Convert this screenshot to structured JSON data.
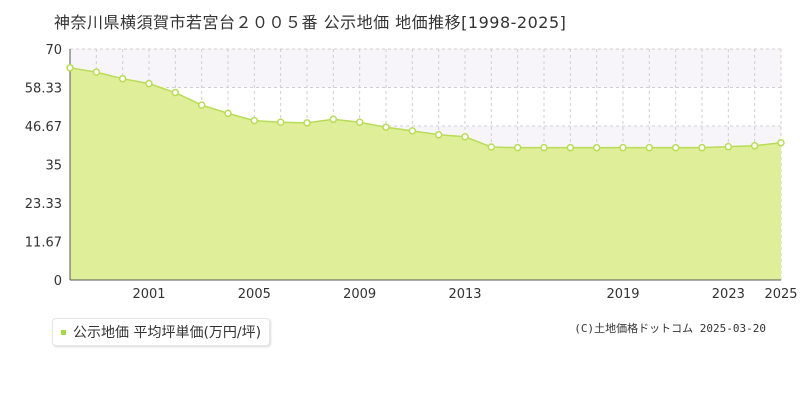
{
  "title": "神奈川県横須賀市若宮台２００５番 公示地価 地価推移[1998-2025]",
  "legend": {
    "label": "公示地価 平均坪単価(万円/坪)"
  },
  "credit": "(C)土地価格ドットコム 2025-03-20",
  "colors": {
    "fill": "#dfee99",
    "line": "#b9dc56",
    "marker_fill": "#ffffff",
    "marker_stroke": "#b9dc56",
    "band": "#f7f5f9",
    "grid": "#cfcfcf"
  },
  "chart_data": {
    "type": "area",
    "title": "神奈川県横須賀市若宮台２００５番 公示地価 地価推移[1998-2025]",
    "xlabel": "",
    "ylabel": "",
    "ylim": [
      0,
      70
    ],
    "xlim": [
      1998,
      2025
    ],
    "y_ticks": [
      "0",
      "11.67",
      "23.33",
      "35",
      "46.67",
      "58.33",
      "70"
    ],
    "x_tick_labels": [
      "2001",
      "2005",
      "2009",
      "2013",
      "2019",
      "2023",
      "2025"
    ],
    "legend_position": "bottom-left",
    "grid": true,
    "series": [
      {
        "name": "公示地価 平均坪単価(万円/坪)",
        "x": [
          1998,
          1999,
          2000,
          2001,
          2002,
          2003,
          2004,
          2005,
          2006,
          2007,
          2008,
          2009,
          2010,
          2011,
          2012,
          2013,
          2014,
          2015,
          2016,
          2017,
          2018,
          2019,
          2020,
          2021,
          2022,
          2023,
          2024,
          2025
        ],
        "values": [
          64.3,
          63.0,
          61.0,
          59.5,
          56.8,
          53.0,
          50.5,
          48.3,
          47.8,
          47.6,
          48.7,
          47.8,
          46.3,
          45.2,
          44.0,
          43.4,
          40.3,
          40.1,
          40.1,
          40.1,
          40.1,
          40.1,
          40.1,
          40.1,
          40.1,
          40.4,
          40.7,
          41.6
        ]
      }
    ]
  }
}
